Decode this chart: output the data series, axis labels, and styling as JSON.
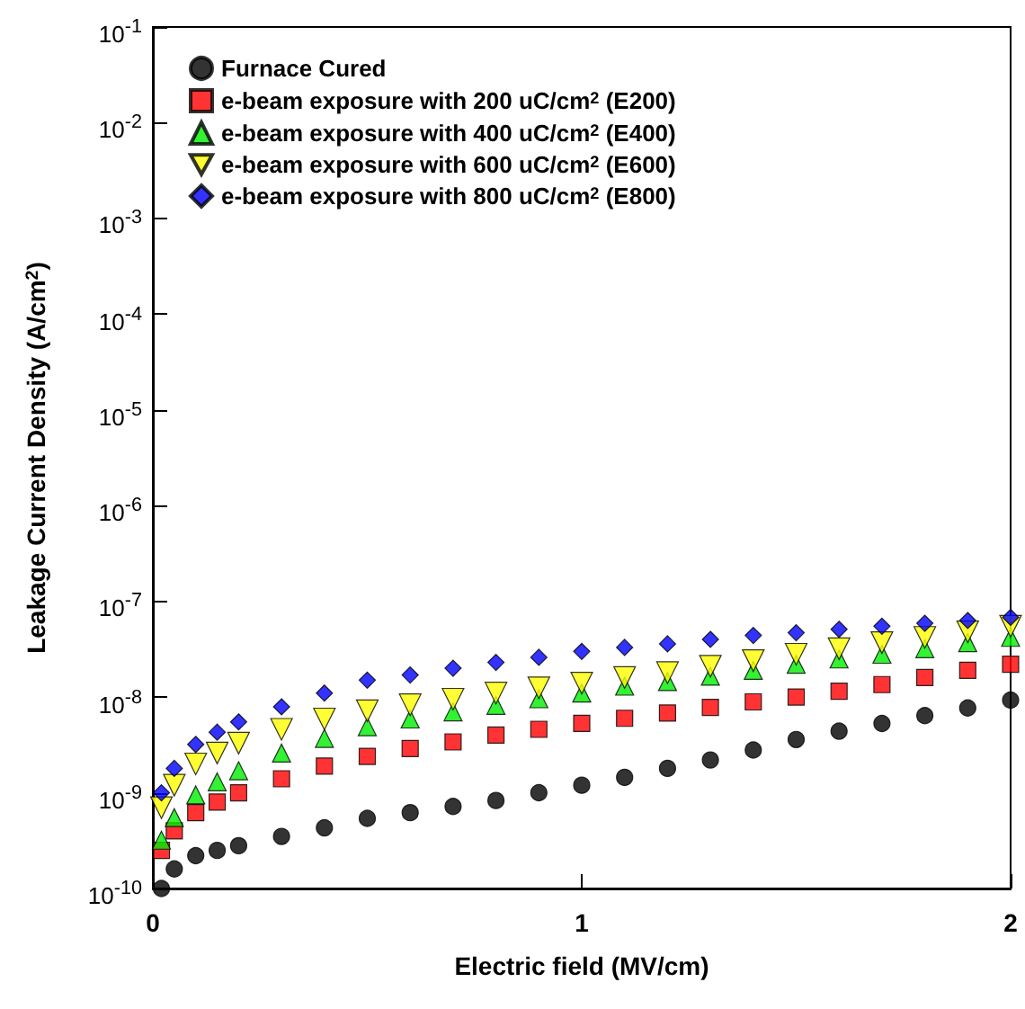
{
  "chart_data": {
    "type": "scatter",
    "xlabel": "Electric field (MV/cm)",
    "ylabel": "Leakage Current Density (A/cm$^{2}$)",
    "x": [
      0.02,
      0.05,
      0.1,
      0.15,
      0.2,
      0.3,
      0.4,
      0.5,
      0.6,
      0.7,
      0.8,
      0.9,
      1.0,
      1.1,
      1.2,
      1.3,
      1.4,
      1.5,
      1.6,
      1.7,
      1.8,
      1.9,
      2.0
    ],
    "series": [
      {
        "name": "Furnace Cured",
        "color": "#000000",
        "marker": "circle",
        "values": [
          1e-10,
          1.6e-10,
          2.2e-10,
          2.5e-10,
          2.8e-10,
          3.5e-10,
          4.3e-10,
          5.4e-10,
          6.2e-10,
          7.2e-10,
          8.3e-10,
          1e-09,
          1.2e-09,
          1.45e-09,
          1.8e-09,
          2.2e-09,
          2.8e-09,
          3.6e-09,
          4.4e-09,
          5.3e-09,
          6.4e-09,
          7.7e-09,
          9.3e-09
        ]
      },
      {
        "name": "e-beam exposure with 200 uC/cm$^{2}$ (E200)",
        "color": "#ff0000",
        "marker": "square",
        "values": [
          2.5e-10,
          4e-10,
          6.2e-10,
          8e-10,
          1e-09,
          1.4e-09,
          1.9e-09,
          2.4e-09,
          2.9e-09,
          3.4e-09,
          4e-09,
          4.6e-09,
          5.3e-09,
          6e-09,
          6.8e-09,
          7.8e-09,
          8.9e-09,
          1e-08,
          1.15e-08,
          1.35e-08,
          1.6e-08,
          1.9e-08,
          2.2e-08
        ]
      },
      {
        "name": "e-beam exposure with 400 uC/cm$^{2}$ (E400)",
        "color": "#00ee00",
        "marker": "triangle",
        "values": [
          3.2e-10,
          5.5e-10,
          9.5e-10,
          1.3e-09,
          1.7e-09,
          2.6e-09,
          3.7e-09,
          4.9e-09,
          5.9e-09,
          7e-09,
          8.2e-09,
          9.6e-09,
          1.1e-08,
          1.3e-08,
          1.45e-08,
          1.65e-08,
          1.9e-08,
          2.2e-08,
          2.5e-08,
          2.8e-08,
          3.2e-08,
          3.7e-08,
          4.2e-08
        ]
      },
      {
        "name": "e-beam exposure with 600 uC/cm$^{2}$ (E600)",
        "color": "#ffff00",
        "marker": "triangle-down",
        "values": [
          7e-10,
          1.2e-09,
          2e-09,
          2.6e-09,
          3.3e-09,
          4.6e-09,
          5.9e-09,
          7.2e-09,
          8.3e-09,
          9.5e-09,
          1.1e-08,
          1.25e-08,
          1.4e-08,
          1.6e-08,
          1.8e-08,
          2.1e-08,
          2.4e-08,
          2.8e-08,
          3.2e-08,
          3.7e-08,
          4.2e-08,
          4.8e-08,
          5.5e-08
        ]
      },
      {
        "name": "e-beam exposure with 800 uC/cm$^{2}$ (E800)",
        "color": "#0000ff",
        "marker": "diamond",
        "values": [
          1e-09,
          1.8e-09,
          3.2e-09,
          4.3e-09,
          5.5e-09,
          7.9e-09,
          1.1e-08,
          1.5e-08,
          1.7e-08,
          2e-08,
          2.3e-08,
          2.6e-08,
          3e-08,
          3.3e-08,
          3.6e-08,
          4e-08,
          4.4e-08,
          4.7e-08,
          5.1e-08,
          5.5e-08,
          5.9e-08,
          6.3e-08,
          6.8e-08
        ]
      }
    ],
    "xlim": [
      0,
      2
    ],
    "xticks": [
      0,
      1,
      2
    ],
    "ylim": [
      1e-10,
      0.1
    ],
    "log": true,
    "yticks": [
      {
        "value": 1e-10,
        "label": "10$^{-10}$"
      },
      {
        "value": 1e-09,
        "label": "10$^{-9}$"
      },
      {
        "value": 1e-08,
        "label": "10$^{-8}$"
      },
      {
        "value": 1e-07,
        "label": "10$^{-7}$"
      },
      {
        "value": 1e-06,
        "label": "10$^{-6}$"
      },
      {
        "value": 1e-05,
        "label": "10$^{-5}$"
      },
      {
        "value": 0.0001,
        "label": "10$^{-4}$"
      },
      {
        "value": 0.001,
        "label": "10$^{-3}$"
      },
      {
        "value": 0.01,
        "label": "10$^{-2}$"
      },
      {
        "value": 0.1,
        "label": "10$^{-1}$"
      }
    ],
    "grid": false,
    "legend": "top left"
  }
}
